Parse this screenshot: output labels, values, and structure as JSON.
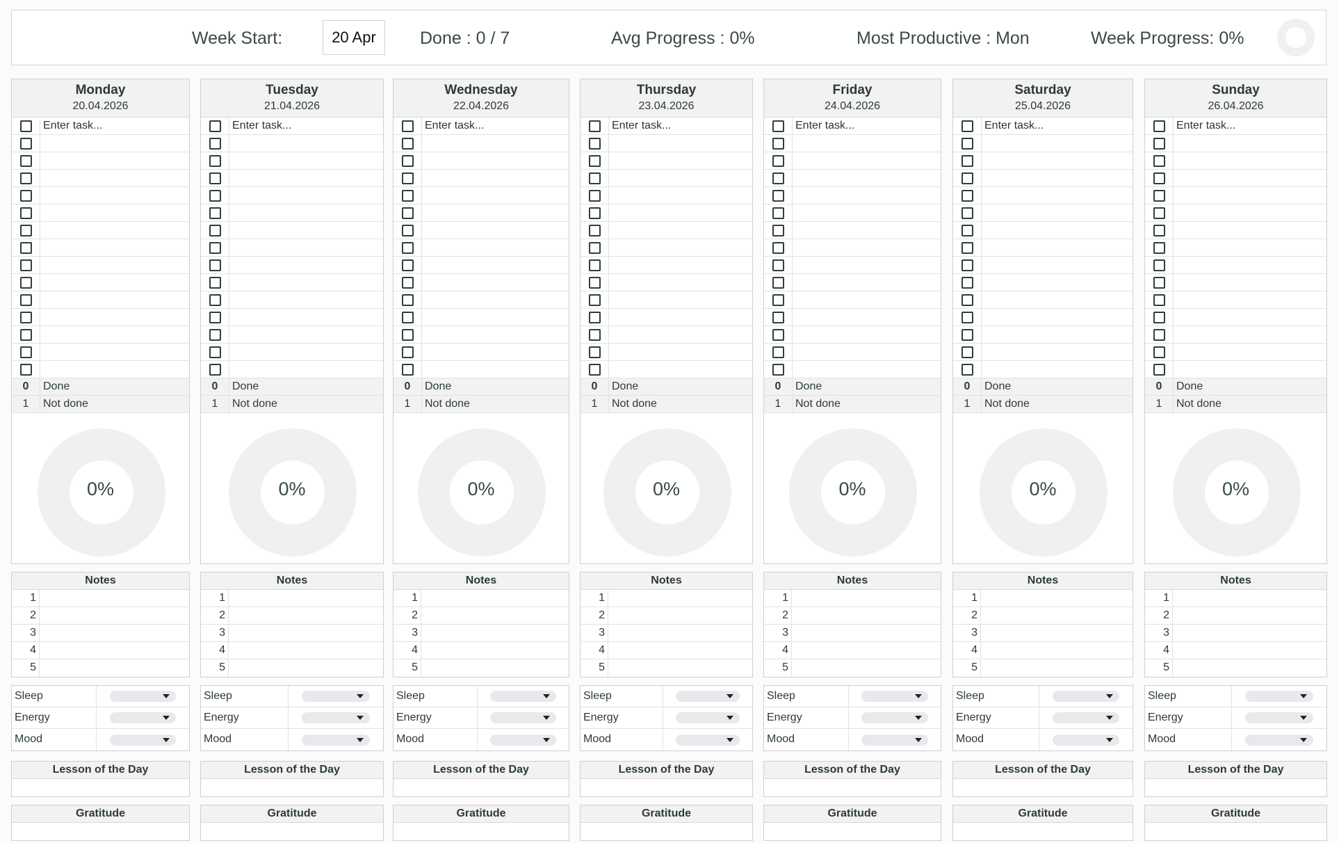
{
  "header": {
    "week_start_label": "Week Start:",
    "week_start_value": "20 Apr",
    "done_text": "Done : 0 / 7",
    "avg_progress_text": "Avg Progress : 0%",
    "most_productive_text": "Most Productive : Mon",
    "week_progress_text": "Week Progress: 0%",
    "week_progress_value": 0
  },
  "days": [
    {
      "name": "Monday",
      "date": "20.04.2026",
      "task_placeholder": "Enter task...",
      "done_count": "0",
      "done_label": "Done",
      "not_done_count": "1",
      "not_done_label": "Not done",
      "progress_text": "0%",
      "progress_value": 0
    },
    {
      "name": "Tuesday",
      "date": "21.04.2026",
      "task_placeholder": "Enter task...",
      "done_count": "0",
      "done_label": "Done",
      "not_done_count": "1",
      "not_done_label": "Not done",
      "progress_text": "0%",
      "progress_value": 0
    },
    {
      "name": "Wednesday",
      "date": "22.04.2026",
      "task_placeholder": "Enter task...",
      "done_count": "0",
      "done_label": "Done",
      "not_done_count": "1",
      "not_done_label": "Not done",
      "progress_text": "0%",
      "progress_value": 0
    },
    {
      "name": "Thursday",
      "date": "23.04.2026",
      "task_placeholder": "Enter task...",
      "done_count": "0",
      "done_label": "Done",
      "not_done_count": "1",
      "not_done_label": "Not done",
      "progress_text": "0%",
      "progress_value": 0
    },
    {
      "name": "Friday",
      "date": "24.04.2026",
      "task_placeholder": "Enter task...",
      "done_count": "0",
      "done_label": "Done",
      "not_done_count": "1",
      "not_done_label": "Not done",
      "progress_text": "0%",
      "progress_value": 0
    },
    {
      "name": "Saturday",
      "date": "25.04.2026",
      "task_placeholder": "Enter task...",
      "done_count": "0",
      "done_label": "Done",
      "not_done_count": "1",
      "not_done_label": "Not done",
      "progress_text": "0%",
      "progress_value": 0
    },
    {
      "name": "Sunday",
      "date": "26.04.2026",
      "task_placeholder": "Enter task...",
      "done_count": "0",
      "done_label": "Done",
      "not_done_count": "1",
      "not_done_label": "Not done",
      "progress_text": "0%",
      "progress_value": 0
    }
  ],
  "notes_title": "Notes",
  "note_numbers": [
    "1",
    "2",
    "3",
    "4",
    "5"
  ],
  "metrics": [
    "Sleep",
    "Energy",
    "Mood"
  ],
  "lesson_title": "Lesson of the Day",
  "gratitude_title": "Gratitude",
  "colors": {
    "accent": "#2d3b35",
    "panel_header": "#f2f2f2",
    "ring": "#f0f0f0",
    "dropdown": "#e7e9ec"
  }
}
